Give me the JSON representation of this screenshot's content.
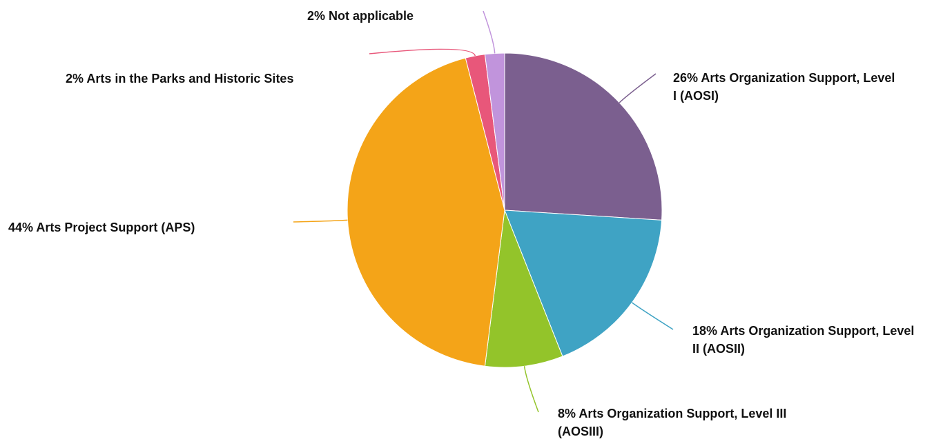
{
  "chart_data": {
    "type": "pie",
    "categories": [
      "Arts Organization Support, Level I (AOSI)",
      "Arts Organization Support, Level II (AOSII)",
      "Arts Organization Support, Level III (AOSIII)",
      "Arts Project Support (APS)",
      "Arts in the Parks and Historic Sites",
      "Not applicable"
    ],
    "values": [
      26,
      18,
      8,
      44,
      2,
      2
    ],
    "value_labels": [
      "26%",
      "18%",
      "8%",
      "44%",
      "2%",
      "2%"
    ],
    "colors": [
      "#7b5f8f",
      "#3fa3c4",
      "#93c42a",
      "#f4a418",
      "#e8577a",
      "#c194dc"
    ]
  }
}
